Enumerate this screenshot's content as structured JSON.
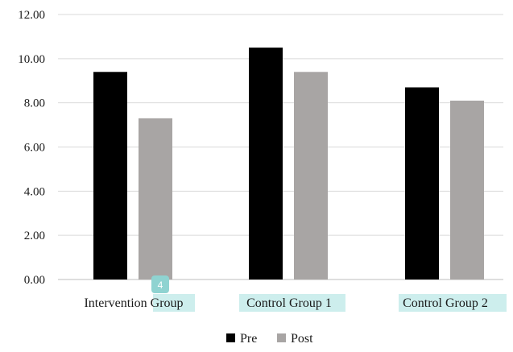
{
  "chart_data": {
    "type": "bar",
    "categories": [
      "Intervention Group",
      "Control Group 1",
      "Control Group 2"
    ],
    "series": [
      {
        "name": "Pre",
        "values": [
          9.4,
          10.5,
          8.7
        ],
        "color": "#000000"
      },
      {
        "name": "Post",
        "values": [
          7.3,
          9.4,
          8.1
        ],
        "color": "#a8a5a4"
      }
    ],
    "yticks": [
      "0.00",
      "2.00",
      "4.00",
      "6.00",
      "8.00",
      "10.00",
      "12.00"
    ],
    "ylim": [
      0,
      12
    ],
    "grid": true,
    "legend_position": "bottom-center",
    "highlight_color": "#cdeeed",
    "annotation_badge": {
      "text": "4",
      "color": "#8fd3d1"
    }
  }
}
